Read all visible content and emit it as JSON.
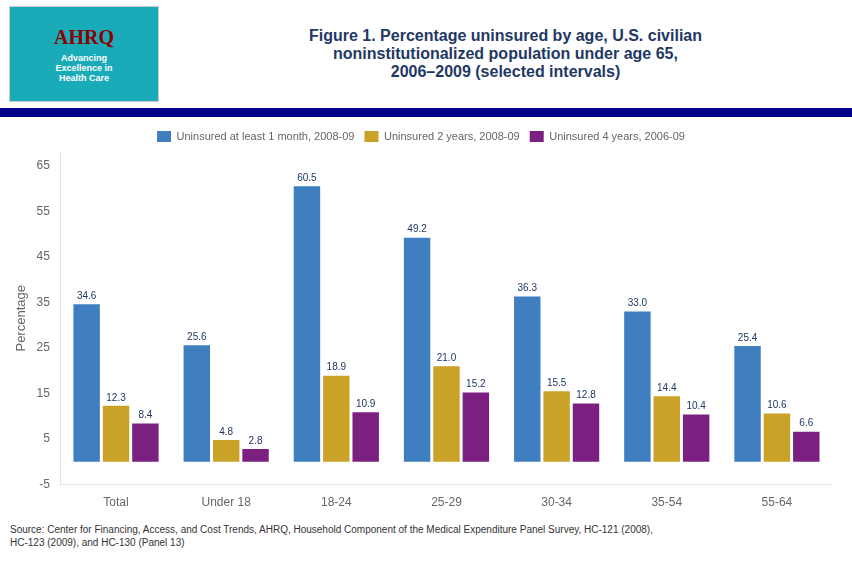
{
  "chart_data": {
    "type": "bar",
    "title": "Figure 1. Percentage uninsured by age, U.S. civilian\nnoninstitutionalized population under age 65,\n2006–2009 (selected intervals)",
    "categories": [
      "Total",
      "Under 18",
      "18-24",
      "25-29",
      "30-34",
      "35-54",
      "55-64"
    ],
    "series": [
      {
        "name": "Uninsured at least 1 month, 2008-09",
        "color": "#3F7FBF",
        "values": [
          34.6,
          25.6,
          60.5,
          49.2,
          36.3,
          33.0,
          25.4
        ],
        "value_labels": [
          "34.6",
          "25.6",
          "60.5",
          "49.2",
          "36.3",
          "33.0",
          "25.4"
        ]
      },
      {
        "name": "Uninsured 2 years, 2008-09",
        "color": "#C9A227",
        "values": [
          12.3,
          4.8,
          18.9,
          21.0,
          15.5,
          14.4,
          10.6
        ],
        "value_labels": [
          "12.3",
          "4.8",
          "18.9",
          "21.0",
          "15.5",
          "14.4",
          "10.6"
        ]
      },
      {
        "name": "Uninsured 4 years, 2006-09",
        "color": "#7B2080",
        "values": [
          8.4,
          2.8,
          10.9,
          15.2,
          12.8,
          10.4,
          6.6
        ],
        "value_labels": [
          "8.4",
          "2.8",
          "10.9",
          "15.2",
          "12.8",
          "10.4",
          "6.6"
        ]
      }
    ],
    "y_label": "Percentage",
    "ylim": [
      -5,
      68
    ],
    "yticks": [
      -5,
      5,
      15,
      25,
      35,
      45,
      55,
      65
    ],
    "grid": false,
    "legend": "top",
    "data_labels": true,
    "annotations": [
      "AHRQ",
      "Advancing\nExcellence in\nHealth Care",
      "Source: Center for Financing, Access, and Cost Trends, AHRQ, Household Component of the Medical Expenditure Panel Survey, HC-121 (2008),\nHC-123 (2009), and HC-130 (Panel 13)"
    ]
  }
}
